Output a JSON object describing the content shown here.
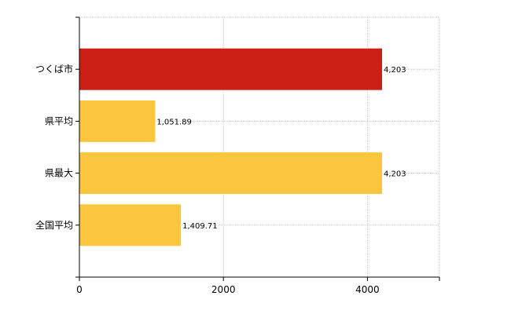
{
  "chart_data": {
    "type": "bar",
    "orientation": "horizontal",
    "categories": [
      "つくば市",
      "県平均",
      "県最大",
      "全国平均"
    ],
    "values": [
      4203,
      1051.89,
      4203,
      1409.71
    ],
    "value_labels": [
      "4,203",
      "1,051.89",
      "4,203",
      "1,409.71"
    ],
    "colors": [
      "#cc2016",
      "#f9c63d",
      "#f9c63d",
      "#f9c63d"
    ],
    "xlim": [
      0,
      5000
    ],
    "xticks": [
      0,
      2000,
      4000
    ],
    "xtick_labels": [
      "0",
      "2000",
      "4000"
    ],
    "grid": true,
    "title": "",
    "xlabel": "",
    "ylabel": ""
  }
}
